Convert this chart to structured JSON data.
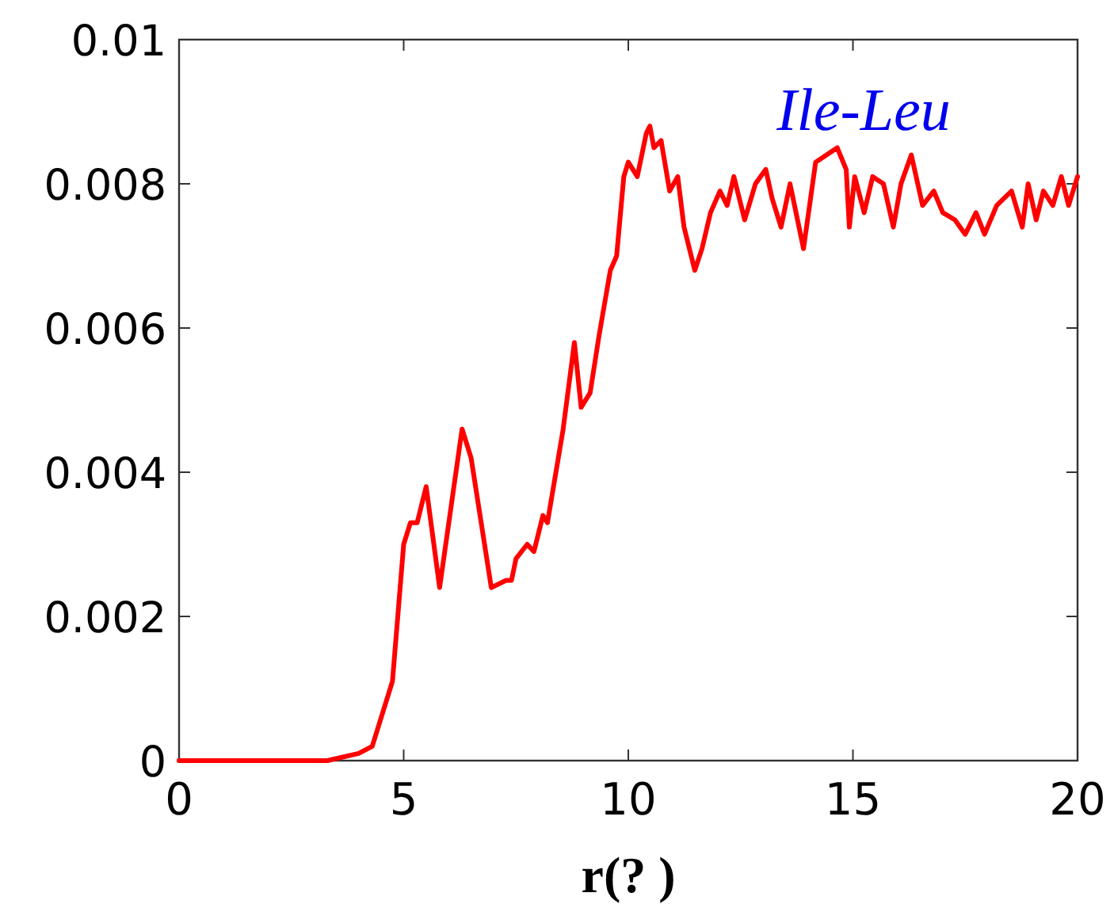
{
  "chart_data": {
    "type": "line",
    "xlabel": "r(? )",
    "annotations": [
      "Ile-Leu"
    ],
    "xlim": [
      0,
      20
    ],
    "ylim": [
      0,
      0.01
    ],
    "xticks": [
      0,
      5,
      10,
      15,
      20
    ],
    "yticks": [
      0,
      0.002,
      0.004,
      0.006,
      0.008,
      0.01
    ],
    "grid": false,
    "series": [
      {
        "color": "#ff0000",
        "x": [
          0,
          3.3,
          4.0,
          4.3,
          4.75,
          5.0,
          5.15,
          5.3,
          5.5,
          5.8,
          6.3,
          6.5,
          6.95,
          7.28,
          7.4,
          7.5,
          7.75,
          7.9,
          8.1,
          8.2,
          8.55,
          8.8,
          8.95,
          9.15,
          9.35,
          9.6,
          9.74,
          9.9,
          10.0,
          10.2,
          10.4,
          10.48,
          10.57,
          10.73,
          10.92,
          11.1,
          11.24,
          11.48,
          11.64,
          11.83,
          12.04,
          12.2,
          12.35,
          12.59,
          12.83,
          13.06,
          13.2,
          13.4,
          13.6,
          13.9,
          14.17,
          14.65,
          14.85,
          14.92,
          15.04,
          15.25,
          15.44,
          15.68,
          15.9,
          16.07,
          16.3,
          16.55,
          16.8,
          17.0,
          17.27,
          17.5,
          17.74,
          17.93,
          18.2,
          18.53,
          18.77,
          18.9,
          19.08,
          19.24,
          19.45,
          19.64,
          19.8,
          20.0
        ],
        "values": [
          0,
          0,
          0.0001,
          0.0002,
          0.0011,
          0.003,
          0.0033,
          0.0033,
          0.0038,
          0.0024,
          0.0046,
          0.0042,
          0.0024,
          0.0025,
          0.0025,
          0.0028,
          0.003,
          0.0029,
          0.0034,
          0.0033,
          0.0046,
          0.0058,
          0.0049,
          0.0051,
          0.0059,
          0.0068,
          0.007,
          0.0081,
          0.0083,
          0.0081,
          0.0087,
          0.0088,
          0.0085,
          0.0086,
          0.0079,
          0.0081,
          0.0074,
          0.0068,
          0.0071,
          0.0076,
          0.0079,
          0.0077,
          0.0081,
          0.0075,
          0.008,
          0.0082,
          0.0078,
          0.0074,
          0.008,
          0.0071,
          0.0083,
          0.0085,
          0.0082,
          0.0074,
          0.0081,
          0.0076,
          0.0081,
          0.008,
          0.0074,
          0.008,
          0.0084,
          0.0077,
          0.0079,
          0.0076,
          0.0075,
          0.0073,
          0.0076,
          0.0073,
          0.0077,
          0.0079,
          0.0074,
          0.008,
          0.0075,
          0.0079,
          0.0077,
          0.0081,
          0.0077,
          0.0081
        ]
      }
    ]
  }
}
